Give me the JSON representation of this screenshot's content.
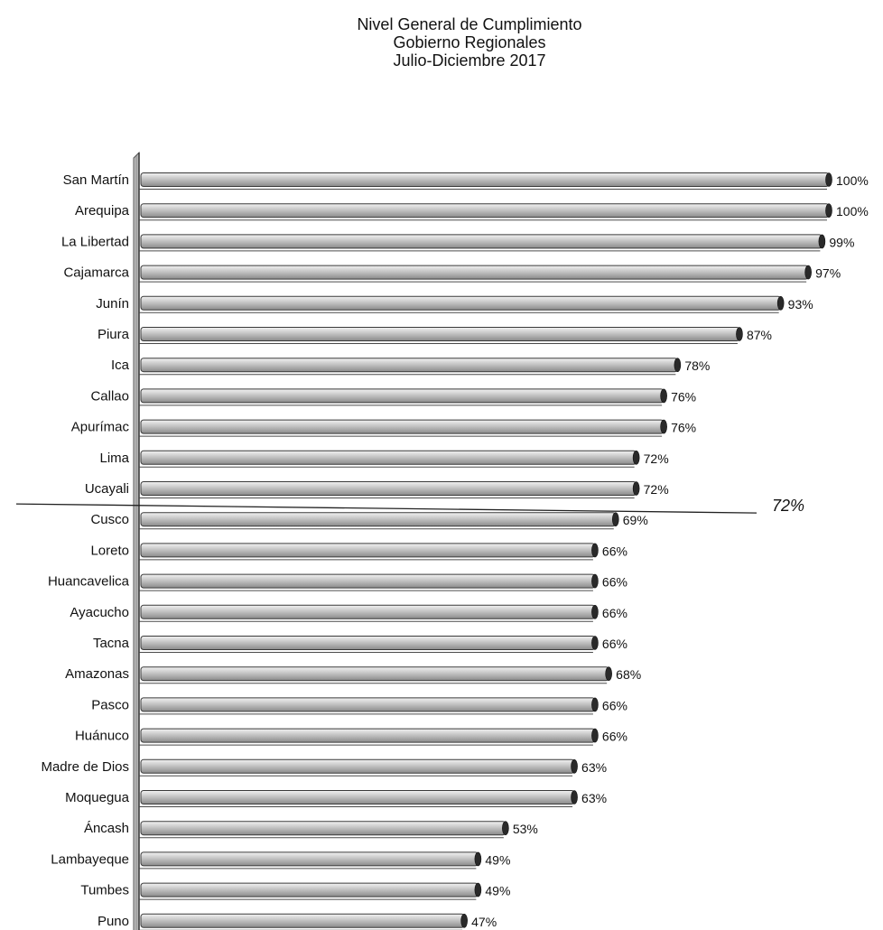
{
  "chart_data": {
    "type": "bar",
    "orientation": "horizontal",
    "title": "Nivel General de Cumplimiento",
    "subtitle": [
      "Gobierno Regionales",
      "Julio-Diciembre 2017"
    ],
    "xlabel": "",
    "ylabel": "",
    "xlim": [
      0,
      100
    ],
    "grid": false,
    "legend": "none",
    "categories": [
      "San Martín",
      "Arequipa",
      "La Libertad",
      "Cajamarca",
      "Junín",
      "Piura",
      "Ica",
      "Callao",
      "Apurímac",
      "Lima",
      "Ucayali",
      "Cusco",
      "Loreto",
      "Huancavelica",
      "Ayacucho",
      "Tacna",
      "Amazonas",
      "Pasco",
      "Huánuco",
      "Madre de Dios",
      "Moquegua",
      "Áncash",
      "Lambayeque",
      "Tumbes",
      "Puno"
    ],
    "values": [
      100,
      100,
      99,
      97,
      93,
      87,
      78,
      76,
      76,
      72,
      72,
      69,
      66,
      66,
      66,
      66,
      68,
      66,
      66,
      63,
      63,
      53,
      49,
      49,
      47
    ],
    "value_labels": [
      "100%",
      "100%",
      "99%",
      "97%",
      "93%",
      "87%",
      "78%",
      "76%",
      "76%",
      "72%",
      "72%",
      "69%",
      "66%",
      "66%",
      "66%",
      "66%",
      "68%",
      "66%",
      "66%",
      "63%",
      "63%",
      "53%",
      "49%",
      "49%",
      "47%"
    ],
    "reference_line": {
      "value": 72,
      "label": "72%"
    },
    "colors": {
      "bar_light": "#f2f2f2",
      "bar_mid": "#c4c4c4",
      "bar_dark": "#8a8a8a",
      "bar_end": "#2a2a2a",
      "outline": "#3a3a3a",
      "axis_wall": "#9a9a9a"
    }
  }
}
